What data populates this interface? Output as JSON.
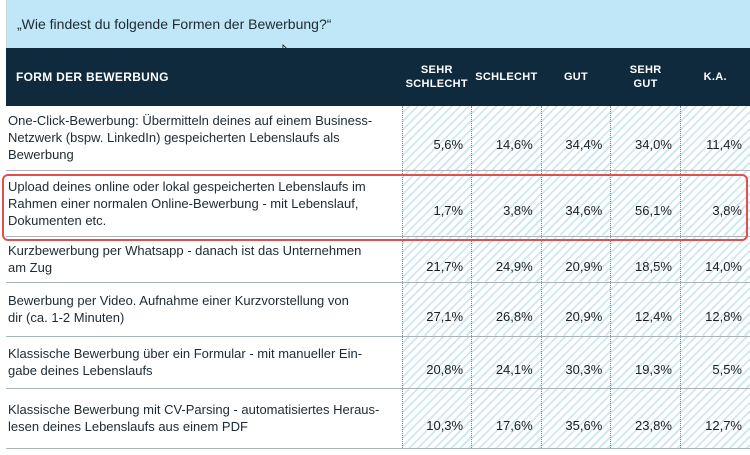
{
  "question": "„Wie findest du folgende Formen der Bewerbung?“",
  "table": {
    "header": {
      "form": "FORM DER BEWERBUNG",
      "columns": [
        [
          "SEHR",
          "SCHLECHT"
        ],
        [
          "SCHLECHT"
        ],
        [
          "GUT"
        ],
        [
          "SEHR",
          "GUT"
        ],
        [
          "K.A."
        ]
      ]
    }
  },
  "chart_data": {
    "type": "table",
    "title": "„Wie findest du folgende Formen der Bewerbung?“",
    "columns": [
      "SEHR SCHLECHT",
      "SCHLECHT",
      "GUT",
      "SEHR GUT",
      "K.A."
    ],
    "highlighted_row": 1,
    "rows": [
      {
        "label": [
          "One-Click-Bewerbung: Übermitteln deines auf einem Business-",
          "Netzwerk (bspw. LinkedIn) gespeicherten Lebenslaufs als",
          "Bewerbung"
        ],
        "values": [
          "5,6%",
          "14,6%",
          "34,4%",
          "34,0%",
          "11,4%"
        ]
      },
      {
        "label": [
          "Upload deines online oder lokal gespeicherten Lebenslaufs im",
          "Rahmen einer normalen Online-Bewerbung - mit Lebenslauf,",
          "Dokumenten etc."
        ],
        "values": [
          "1,7%",
          "3,8%",
          "34,6%",
          "56,1%",
          "3,8%"
        ]
      },
      {
        "label": [
          "Kurzbewerbung per Whatsapp - danach ist das Unternehmen",
          "am Zug"
        ],
        "values": [
          "21,7%",
          "24,9%",
          "20,9%",
          "18,5%",
          "14,0%"
        ]
      },
      {
        "label": [
          "Bewerbung per Video. Aufnahme einer Kurzvorstellung von",
          "dir (ca. 1-2 Minuten)"
        ],
        "values": [
          "27,1%",
          "26,8%",
          "20,9%",
          "12,4%",
          "12,8%"
        ]
      },
      {
        "label": [
          "Klassische Bewerbung über ein Formular - mit manueller Ein-",
          "gabe deines Lebenslaufs"
        ],
        "values": [
          "20,8%",
          "24,1%",
          "30,3%",
          "19,3%",
          "5,5%"
        ]
      },
      {
        "label": [
          "Klassische Bewerbung mit CV-Parsing - automatisiertes Heraus-",
          "lesen deines Lebenslaufs aus einem PDF"
        ],
        "values": [
          "10,3%",
          "17,6%",
          "35,6%",
          "23,8%",
          "12,7%"
        ]
      }
    ]
  }
}
